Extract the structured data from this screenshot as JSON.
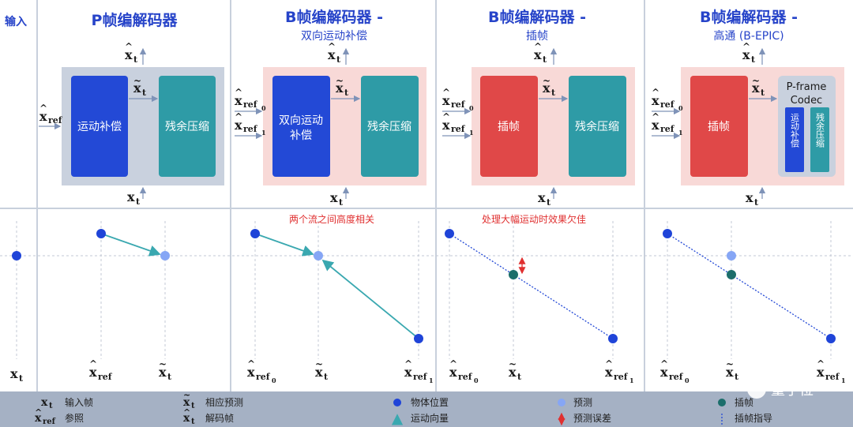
{
  "input_label": "输入",
  "panels": [
    {
      "title": "P帧编解码器",
      "subtitle": "",
      "blocks": [
        "运动补偿",
        "残余压缩"
      ]
    },
    {
      "title": "B帧编解码器 -",
      "subtitle": "双向运动补偿",
      "blocks": [
        "双向运动",
        "补偿",
        "残余压缩"
      ],
      "note": "两个流之间高度相关"
    },
    {
      "title": "B帧编解码器 -",
      "subtitle": "插帧",
      "blocks": [
        "插帧",
        "残余压缩"
      ],
      "note": "处理大幅运动时效果欠佳"
    },
    {
      "title": "B帧编解码器 -",
      "subtitle": "高通 (B-EPIC)",
      "blocks": [
        "插帧",
        "P-frame",
        "Codec",
        "运动补偿",
        "残余压缩"
      ]
    }
  ],
  "symbols": {
    "x": "x",
    "t": "t",
    "ref": "ref",
    "ref0": "ref",
    "sub0": "0",
    "sub1": "1"
  },
  "legend": {
    "input_frame": "输入帧",
    "reference": "参照",
    "prediction": "相应预测",
    "decoded": "解码帧",
    "object_position": "物体位置",
    "motion_vector": "运动向量",
    "predicted": "预测",
    "prediction_error": "预测误差",
    "interpolated": "插帧",
    "interp_guide": "插帧指导",
    "watermark": "量子位"
  },
  "colors": {
    "title_blue": "#2744c9",
    "block_blue": "#2349d6",
    "block_teal": "#2e9ba6",
    "block_red": "#e04848",
    "panel_gray": "#c9d1de",
    "panel_pink": "#f8d9d7",
    "teal_dot": "#1c6e6b",
    "pred_dot": "#86a6f5",
    "arrow_teal": "#3aa8b0"
  }
}
